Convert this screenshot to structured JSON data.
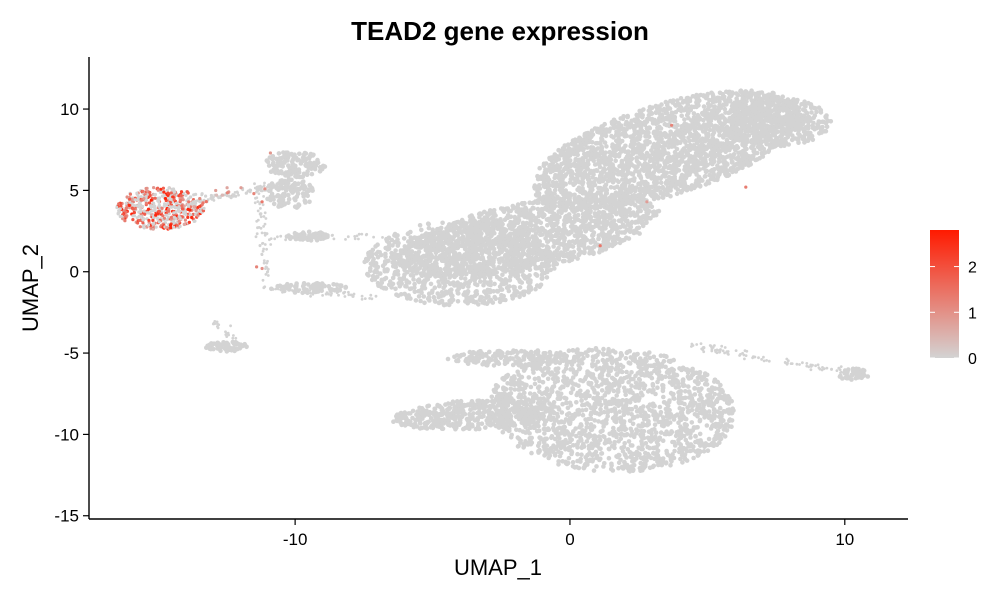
{
  "chart_data": {
    "type": "scatter",
    "title": "TEAD2 gene expression",
    "xlabel": "UMAP_1",
    "ylabel": "UMAP_2",
    "xlim": [
      -17.5,
      12.3
    ],
    "ylim": [
      -15.2,
      13.2
    ],
    "x_ticks": [
      -10,
      0,
      10
    ],
    "x_tick_labels": [
      "-10",
      "0",
      "10"
    ],
    "y_ticks": [
      -15,
      -10,
      -5,
      0,
      5,
      10
    ],
    "y_tick_labels": [
      "-15",
      "-10",
      "-5",
      "0",
      "5",
      "10"
    ],
    "grid": false,
    "legend_position": "right",
    "color_scale": {
      "low_color": "#d3d3d3",
      "high_color": "#ff1a00",
      "range": [
        0,
        2.8
      ],
      "breaks": [
        0,
        1,
        2
      ],
      "break_labels": [
        "0",
        "1",
        "2"
      ]
    },
    "clusters": [
      {
        "cx": 3.5,
        "cy": 7.5,
        "rx": 5.5,
        "ry": 2.6,
        "angle": 32,
        "n": 2400
      },
      {
        "cx": -1.5,
        "cy": 2.2,
        "rx": 5.0,
        "ry": 2.0,
        "angle": 20,
        "n": 1600
      },
      {
        "cx": -4.0,
        "cy": 0.5,
        "rx": 3.5,
        "ry": 2.6,
        "angle": 0,
        "n": 900
      },
      {
        "cx": 7.5,
        "cy": 9.2,
        "rx": 2.0,
        "ry": 1.5,
        "angle": 0,
        "n": 400
      },
      {
        "cx": 1.5,
        "cy": -8.5,
        "rx": 4.5,
        "ry": 3.8,
        "angle": -10,
        "n": 1700
      },
      {
        "cx": -3.5,
        "cy": -8.8,
        "rx": 3.0,
        "ry": 0.9,
        "angle": 5,
        "n": 500
      },
      {
        "cx": -2.0,
        "cy": -5.3,
        "rx": 2.5,
        "ry": 0.5,
        "angle": 0,
        "n": 180
      },
      {
        "cx": -10.0,
        "cy": 6.6,
        "rx": 1.1,
        "ry": 0.8,
        "angle": 0,
        "n": 140
      },
      {
        "cx": -10.2,
        "cy": 4.8,
        "rx": 0.9,
        "ry": 0.9,
        "angle": 0,
        "n": 110
      },
      {
        "cx": -9.6,
        "cy": 2.2,
        "rx": 0.8,
        "ry": 0.3,
        "angle": 0,
        "n": 60
      },
      {
        "cx": -9.5,
        "cy": -1.0,
        "rx": 1.4,
        "ry": 0.3,
        "angle": 0,
        "n": 80
      },
      {
        "cx": -12.5,
        "cy": -4.6,
        "rx": 0.8,
        "ry": 0.3,
        "angle": 0,
        "n": 60
      },
      {
        "cx": 10.3,
        "cy": -6.3,
        "rx": 0.6,
        "ry": 0.35,
        "angle": 0,
        "n": 50
      }
    ],
    "bridges": [
      {
        "x1": 4.3,
        "y1": -4.5,
        "x2": 10.0,
        "y2": -6.2,
        "n": 90
      },
      {
        "x1": -13.5,
        "y1": 4.4,
        "x2": -10.6,
        "y2": 5.3,
        "n": 60
      },
      {
        "x1": -11.3,
        "y1": 5.5,
        "x2": -11.0,
        "y2": -1.0,
        "n": 70
      },
      {
        "x1": -11.0,
        "y1": 2.0,
        "x2": -7.0,
        "y2": 2.2,
        "n": 40
      },
      {
        "x1": -11.0,
        "y1": -1.0,
        "x2": -7.0,
        "y2": -1.6,
        "n": 50
      },
      {
        "x1": -13.0,
        "y1": -3.0,
        "x2": -12.0,
        "y2": -4.5,
        "n": 20
      }
    ],
    "expressing_clusters": [
      {
        "cx": -14.9,
        "cy": 3.9,
        "rx": 1.6,
        "ry": 1.3,
        "angle": 0,
        "n": 520,
        "expr_min": 0.6,
        "expr_max": 2.8
      },
      {
        "cx": -12.8,
        "cy": 4.7,
        "rx": 1.2,
        "ry": 0.4,
        "angle": 15,
        "n": 25,
        "expr_min": 0.3,
        "expr_max": 1.5
      }
    ],
    "expressing_points": [
      {
        "x": -11.5,
        "y": 4.8,
        "expr": 1.2
      },
      {
        "x": -11.1,
        "y": 5.1,
        "expr": 1.0
      },
      {
        "x": -11.2,
        "y": 4.3,
        "expr": 1.4
      },
      {
        "x": -10.9,
        "y": 7.3,
        "expr": 0.9
      },
      {
        "x": -11.4,
        "y": 0.3,
        "expr": 1.2
      },
      {
        "x": -11.2,
        "y": 0.2,
        "expr": 1.0
      },
      {
        "x": 3.7,
        "y": 9.0,
        "expr": 1.2
      },
      {
        "x": 6.4,
        "y": 5.2,
        "expr": 1.3
      },
      {
        "x": 1.1,
        "y": 1.6,
        "expr": 1.4
      },
      {
        "x": 2.8,
        "y": 4.3,
        "expr": 0.8
      }
    ]
  }
}
